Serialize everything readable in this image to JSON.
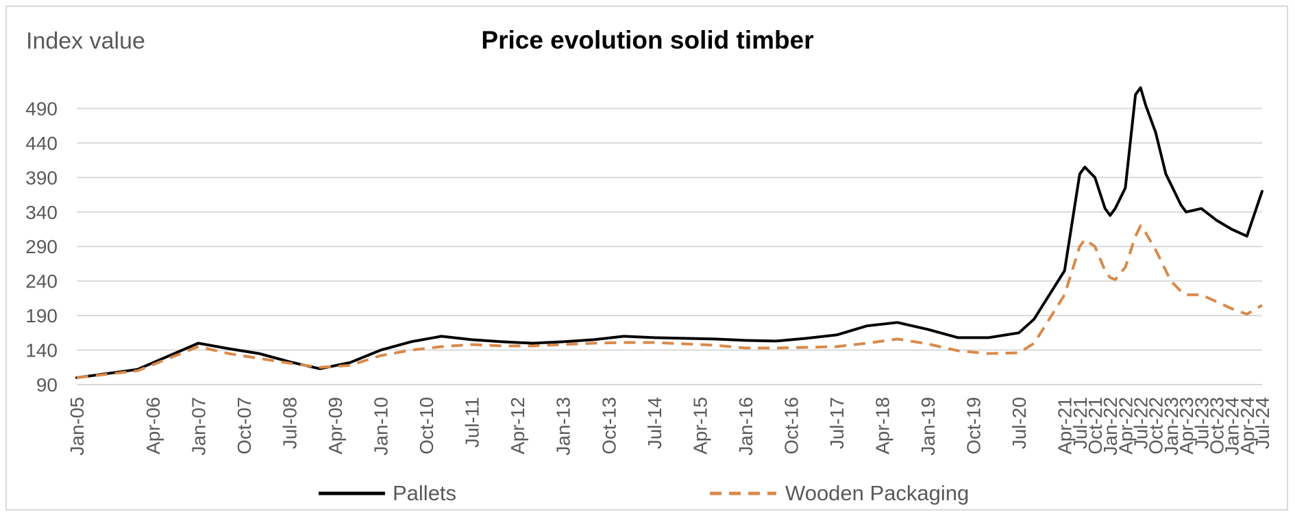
{
  "chart_data": {
    "type": "line",
    "title": "Price evolution solid timber",
    "ylabel": "Index value",
    "xlabel": "",
    "ylim": [
      90,
      540
    ],
    "yticks": [
      90,
      140,
      190,
      240,
      290,
      340,
      390,
      440,
      490
    ],
    "grid": true,
    "legend_position": "bottom",
    "x_tick_labels": [
      "Jan-05",
      "Apr-06",
      "Jan-07",
      "Oct-07",
      "Jul-08",
      "Apr-09",
      "Jan-10",
      "Oct-10",
      "Jul-11",
      "Apr-12",
      "Jan-13",
      "Oct-13",
      "Jul-14",
      "Apr-15",
      "Jan-16",
      "Oct-16",
      "Jul-17",
      "Apr-18",
      "Jan-19",
      "Oct-19",
      "Jul-20",
      "Apr-21",
      "Jul-21",
      "Oct-21",
      "Jan-22",
      "Apr-22",
      "Jul-22",
      "Oct-22",
      "Jan-23",
      "Apr-23",
      "Jul-23",
      "Oct-23",
      "Jan-24",
      "Apr-24",
      "Jul-24"
    ],
    "series": [
      {
        "name": "Pallets",
        "color": "#000000",
        "dash": "solid",
        "points": [
          [
            "Jan-05",
            100
          ],
          [
            "Jan-06",
            112
          ],
          [
            "Jan-07",
            150
          ],
          [
            "Jul-07",
            142
          ],
          [
            "Jan-08",
            135
          ],
          [
            "Jul-08",
            123
          ],
          [
            "Jan-09",
            113
          ],
          [
            "Jul-09",
            122
          ],
          [
            "Jan-10",
            140
          ],
          [
            "Jul-10",
            152
          ],
          [
            "Jan-11",
            160
          ],
          [
            "Jul-11",
            155
          ],
          [
            "Jan-12",
            152
          ],
          [
            "Jul-12",
            150
          ],
          [
            "Jan-13",
            152
          ],
          [
            "Jul-13",
            155
          ],
          [
            "Jan-14",
            160
          ],
          [
            "Jul-14",
            158
          ],
          [
            "Jan-15",
            157
          ],
          [
            "Jul-15",
            156
          ],
          [
            "Jan-16",
            154
          ],
          [
            "Jul-16",
            153
          ],
          [
            "Jan-17",
            157
          ],
          [
            "Jul-17",
            162
          ],
          [
            "Jan-18",
            175
          ],
          [
            "Jul-18",
            180
          ],
          [
            "Jan-19",
            170
          ],
          [
            "Jul-19",
            158
          ],
          [
            "Jan-20",
            158
          ],
          [
            "Jul-20",
            165
          ],
          [
            "Oct-20",
            185
          ],
          [
            "Jan-21",
            220
          ],
          [
            "Apr-21",
            255
          ],
          [
            "Jul-21",
            395
          ],
          [
            "Aug-21",
            405
          ],
          [
            "Oct-21",
            390
          ],
          [
            "Dec-21",
            345
          ],
          [
            "Jan-22",
            335
          ],
          [
            "Feb-22",
            345
          ],
          [
            "Apr-22",
            375
          ],
          [
            "Jun-22",
            510
          ],
          [
            "Jul-22",
            520
          ],
          [
            "Aug-22",
            495
          ],
          [
            "Oct-22",
            455
          ],
          [
            "Dec-22",
            395
          ],
          [
            "Jan-23",
            380
          ],
          [
            "Mar-23",
            350
          ],
          [
            "Apr-23",
            340
          ],
          [
            "Jul-23",
            345
          ],
          [
            "Oct-23",
            328
          ],
          [
            "Jan-24",
            315
          ],
          [
            "Apr-24",
            305
          ],
          [
            "Jul-24",
            370
          ]
        ]
      },
      {
        "name": "Wooden Packaging",
        "color": "#d9894a",
        "dash": "dashed",
        "points": [
          [
            "Jan-05",
            100
          ],
          [
            "Jan-06",
            110
          ],
          [
            "Jan-07",
            145
          ],
          [
            "Jul-07",
            135
          ],
          [
            "Jan-08",
            128
          ],
          [
            "Jul-08",
            121
          ],
          [
            "Jan-09",
            115
          ],
          [
            "Jul-09",
            118
          ],
          [
            "Jan-10",
            132
          ],
          [
            "Jul-10",
            140
          ],
          [
            "Jan-11",
            145
          ],
          [
            "Jul-11",
            148
          ],
          [
            "Jan-12",
            146
          ],
          [
            "Jul-12",
            146
          ],
          [
            "Jan-13",
            148
          ],
          [
            "Jul-13",
            150
          ],
          [
            "Jan-14",
            151
          ],
          [
            "Jul-14",
            151
          ],
          [
            "Jan-15",
            149
          ],
          [
            "Jul-15",
            147
          ],
          [
            "Jan-16",
            143
          ],
          [
            "Jul-16",
            143
          ],
          [
            "Jan-17",
            144
          ],
          [
            "Jul-17",
            145
          ],
          [
            "Jan-18",
            150
          ],
          [
            "Jul-18",
            156
          ],
          [
            "Jan-19",
            149
          ],
          [
            "Jul-19",
            139
          ],
          [
            "Jan-20",
            135
          ],
          [
            "Jul-20",
            136
          ],
          [
            "Oct-20",
            150
          ],
          [
            "Jan-21",
            185
          ],
          [
            "Apr-21",
            220
          ],
          [
            "Jul-21",
            290
          ],
          [
            "Aug-21",
            300
          ],
          [
            "Oct-21",
            290
          ],
          [
            "Dec-21",
            255
          ],
          [
            "Jan-22",
            245
          ],
          [
            "Feb-22",
            242
          ],
          [
            "Apr-22",
            260
          ],
          [
            "Jun-22",
            305
          ],
          [
            "Jul-22",
            320
          ],
          [
            "Aug-22",
            310
          ],
          [
            "Oct-22",
            285
          ],
          [
            "Dec-22",
            255
          ],
          [
            "Jan-23",
            240
          ],
          [
            "Mar-23",
            225
          ],
          [
            "Apr-23",
            220
          ],
          [
            "Jul-23",
            220
          ],
          [
            "Oct-23",
            210
          ],
          [
            "Jan-24",
            200
          ],
          [
            "Apr-24",
            192
          ],
          [
            "Jul-24",
            205
          ]
        ]
      }
    ]
  }
}
